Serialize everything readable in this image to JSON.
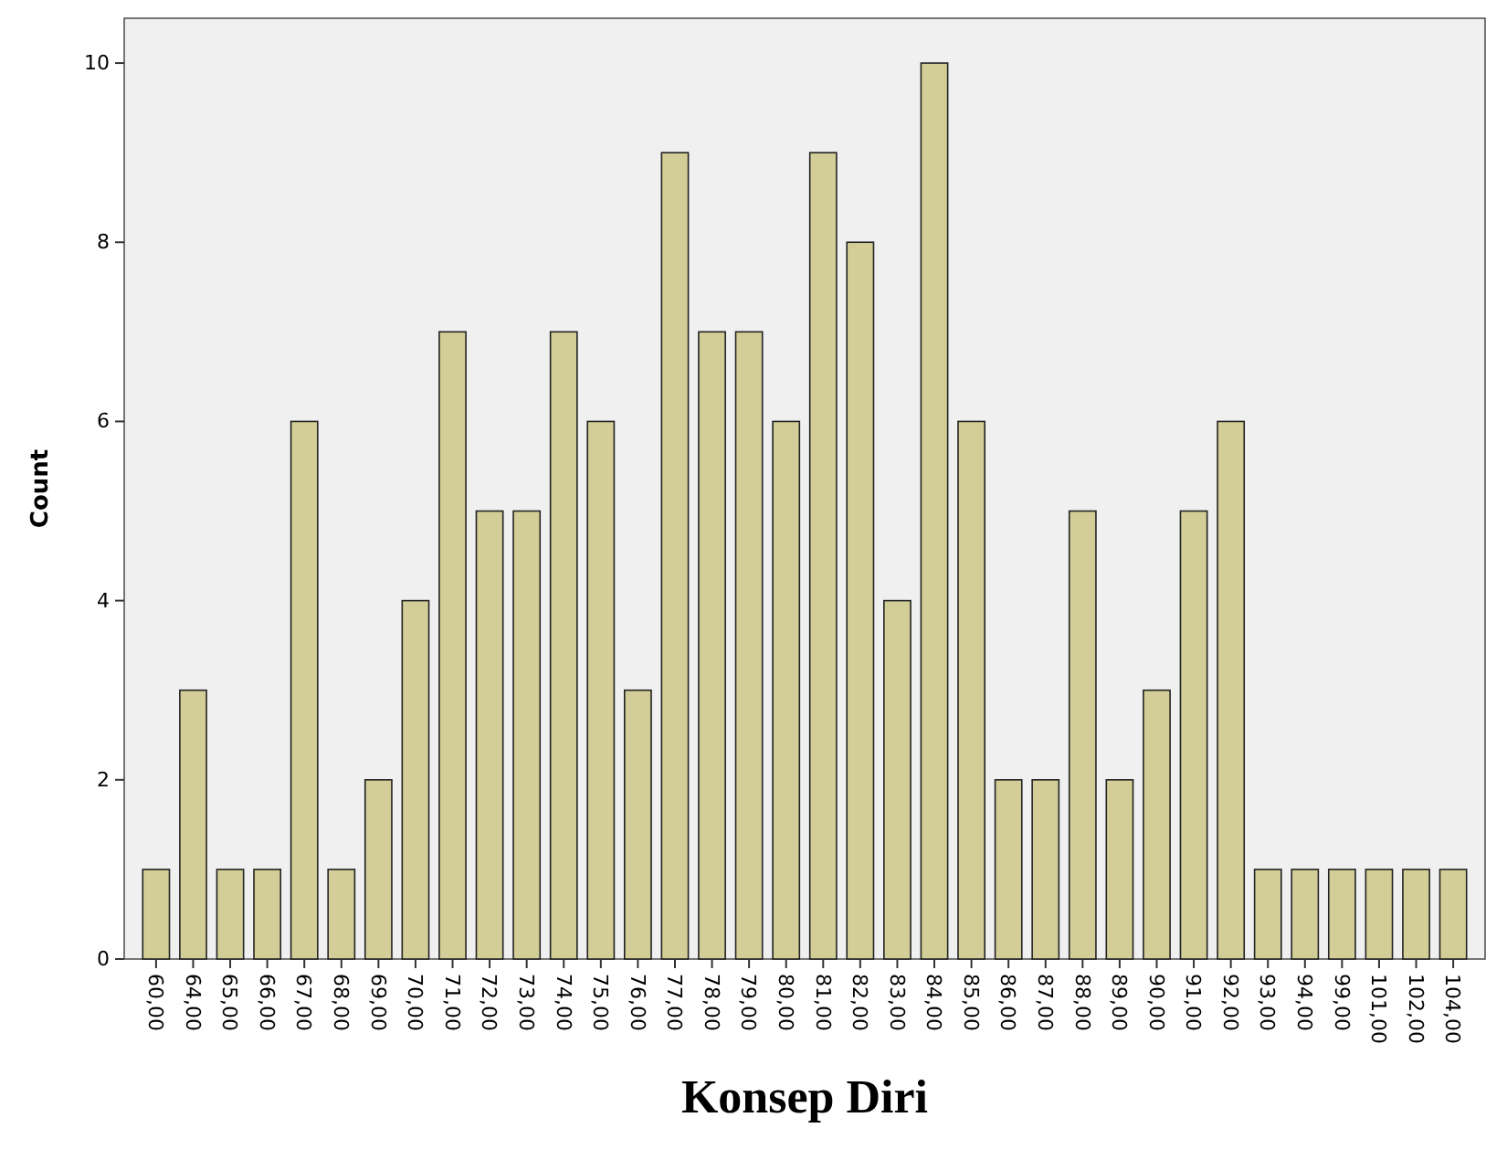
{
  "chart_data": {
    "type": "bar",
    "xlabel": "Konsep Diri",
    "ylabel": "Count",
    "categories": [
      "60,00",
      "64,00",
      "65,00",
      "66,00",
      "67,00",
      "68,00",
      "69,00",
      "70,00",
      "71,00",
      "72,00",
      "73,00",
      "74,00",
      "75,00",
      "76,00",
      "77,00",
      "78,00",
      "79,00",
      "80,00",
      "81,00",
      "82,00",
      "83,00",
      "84,00",
      "85,00",
      "86,00",
      "87,00",
      "88,00",
      "89,00",
      "90,00",
      "91,00",
      "92,00",
      "93,00",
      "94,00",
      "99,00",
      "101,00",
      "102,00",
      "104,00"
    ],
    "values": [
      1,
      3,
      1,
      1,
      6,
      1,
      2,
      4,
      7,
      5,
      5,
      7,
      6,
      3,
      9,
      7,
      7,
      6,
      9,
      8,
      4,
      10,
      6,
      2,
      2,
      5,
      2,
      3,
      5,
      6,
      1,
      1,
      1,
      1,
      1,
      1
    ],
    "color": "#d3ce97",
    "ylim": [
      0,
      10.5
    ],
    "yticks": [
      0,
      2,
      4,
      6,
      8,
      10
    ],
    "grid": false
  }
}
